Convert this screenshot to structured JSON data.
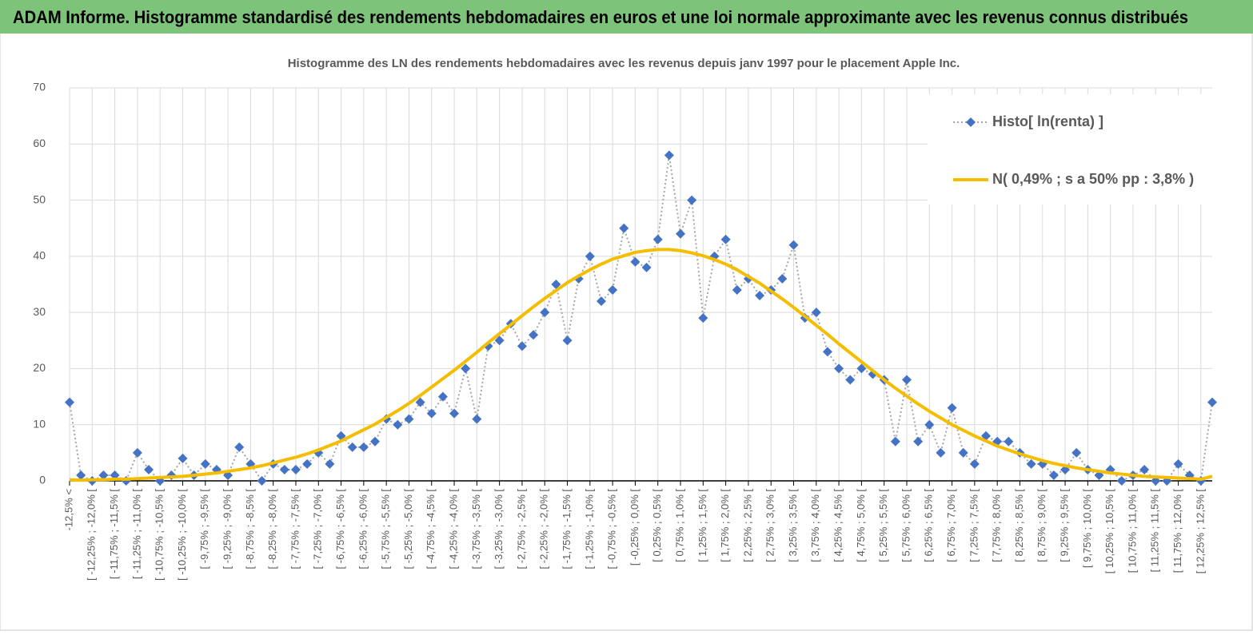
{
  "header": {
    "title": "ADAM Informe. Histogramme standardisé des rendements hebdomadaires en euros et une loi normale approximante avec les revenus connus distribués"
  },
  "chart_data": {
    "type": "line",
    "title": "Histogramme des LN des rendements hebdomadaires avec les revenus depuis janv 1997 pour le placement Apple Inc.",
    "categories": [
      "-12,5% <",
      null,
      "[ -12,25% ; -12,0% [",
      null,
      "[ -11,75% ; -11,5% [",
      null,
      "[ -11,25% ; -11,0% [",
      null,
      "[ -10,75% ; -10,5% [",
      null,
      "[ -10,25% ; -10,0% [",
      null,
      "[ -9,75% ; -9,5% [",
      null,
      "[ -9,25% ; -9,0% [",
      null,
      "[ -8,75% ; -8,5% [",
      null,
      "[ -8,25% ; -8,0% [",
      null,
      "[ -7,75% ; -7,5% [",
      null,
      "[ -7,25% ; -7,0% [",
      null,
      "[ -6,75% ; -6,5% [",
      null,
      "[ -6,25% ; -6,0% [",
      null,
      "[ -5,75% ; -5,5% [",
      null,
      "[ -5,25% ; -5,0% [",
      null,
      "[ -4,75% ; -4,5% [",
      null,
      "[ -4,25% ; -4,0% [",
      null,
      "[ -3,75% ; -3,5% [",
      null,
      "[ -3,25% ; -3,0% [",
      null,
      "[ -2,75% ; -2,5% [",
      null,
      "[ -2,25% ; -2,0% [",
      null,
      "[ -1,75% ; -1,5% [",
      null,
      "[ -1,25% ; -1,0% [",
      null,
      "[ -0,75% ; -0,5% [",
      null,
      "[ -0,25% ; 0,0% [",
      null,
      "[ 0,25% ; 0,5% [",
      null,
      "[ 0,75% ; 1,0% [",
      null,
      "[ 1,25% ; 1,5% [",
      null,
      "[ 1,75% ; 2,0% [",
      null,
      "[ 2,25% ; 2,5% [",
      null,
      "[ 2,75% ; 3,0% [",
      null,
      "[ 3,25% ; 3,5% [",
      null,
      "[ 3,75% ; 4,0% [",
      null,
      "[ 4,25% ; 4,5% [",
      null,
      "[ 4,75% ; 5,0% [",
      null,
      "[ 5,25% ; 5,5% [",
      null,
      "[ 5,75% ; 6,0% [",
      null,
      "[ 6,25% ; 6,5% [",
      null,
      "[ 6,75% ; 7,0% [",
      null,
      "[ 7,25% ; 7,5% [",
      null,
      "[ 7,75% ; 8,0% [",
      null,
      "[ 8,25% ; 8,5% [",
      null,
      "[ 8,75% ; 9,0% [",
      null,
      "[ 9,25% ; 9,5% [",
      null,
      "[ 9,75% ; 10,0% [",
      null,
      "[ 10,25% ; 10,5% [",
      null,
      "[ 10,75% ; 11,0% [",
      null,
      "[ 11,25% ; 11,5% [",
      null,
      "[ 11,75% ; 12,0% [",
      null,
      "[ 12,25% ; 12,5% [",
      null
    ],
    "series": [
      {
        "name": "Histo[ ln(renta) ]",
        "color": "#4472c4",
        "line_color": "#a6a6a6",
        "marker": "diamond",
        "dash": "dotted",
        "values": [
          14,
          1,
          0,
          1,
          1,
          0,
          5,
          2,
          0,
          1,
          4,
          1,
          3,
          2,
          1,
          6,
          3,
          0,
          3,
          2,
          2,
          3,
          5,
          3,
          8,
          6,
          6,
          7,
          11,
          10,
          11,
          14,
          12,
          15,
          12,
          20,
          11,
          24,
          25,
          28,
          24,
          26,
          30,
          35,
          25,
          36,
          40,
          32,
          34,
          45,
          39,
          38,
          43,
          58,
          44,
          50,
          29,
          40,
          43,
          34,
          36,
          33,
          34,
          36,
          42,
          29,
          30,
          23,
          20,
          18,
          20,
          19,
          18,
          7,
          18,
          7,
          10,
          5,
          13,
          5,
          3,
          8,
          7,
          7,
          5,
          3,
          3,
          1,
          2,
          5,
          2,
          1,
          2,
          0,
          1,
          2,
          0,
          0,
          3,
          1,
          0,
          14
        ]
      },
      {
        "name": "N( 0,49% ; s a 50% pp : 3,8% )",
        "color": "#f5bd00",
        "line_color": "#f5bd00",
        "marker": null,
        "dash": "solid",
        "values": [
          0.2,
          0.1,
          0.2,
          0.2,
          0.3,
          0.3,
          0.4,
          0.5,
          0.6,
          0.7,
          0.8,
          1.0,
          1.2,
          1.4,
          1.7,
          2.0,
          2.3,
          2.7,
          3.2,
          3.7,
          4.2,
          4.8,
          5.5,
          6.3,
          7.1,
          8.1,
          9.1,
          10.1,
          11.3,
          12.5,
          13.8,
          15.2,
          16.7,
          18.2,
          19.7,
          21.3,
          22.9,
          24.6,
          26.2,
          27.8,
          29.4,
          31.0,
          32.5,
          33.9,
          35.3,
          36.5,
          37.6,
          38.6,
          39.5,
          40.1,
          40.7,
          41.0,
          41.2,
          41.2,
          41.0,
          40.6,
          40.1,
          39.4,
          38.6,
          37.6,
          36.4,
          35.2,
          33.8,
          32.4,
          30.9,
          29.3,
          27.7,
          26.1,
          24.4,
          22.8,
          21.2,
          19.6,
          18.0,
          16.5,
          15.1,
          13.7,
          12.4,
          11.2,
          10.0,
          9.0,
          8.0,
          7.1,
          6.2,
          5.5,
          4.8,
          4.2,
          3.6,
          3.1,
          2.7,
          2.3,
          2.0,
          1.7,
          1.4,
          1.2,
          1.0,
          0.8,
          0.7,
          0.6,
          0.5,
          0.4,
          0.3,
          0.8
        ]
      }
    ],
    "ylim": [
      0,
      70
    ],
    "yticks": [
      0,
      10,
      20,
      30,
      40,
      50,
      60,
      70
    ],
    "grid": true,
    "legend": "top-right"
  }
}
